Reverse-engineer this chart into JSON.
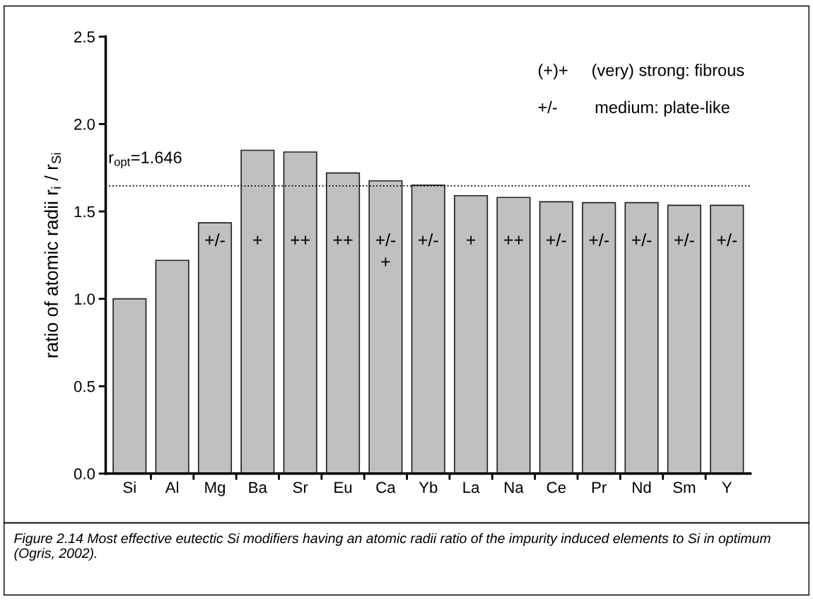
{
  "chart_data": {
    "type": "bar",
    "ylabel": "ratio of atomic radii r$_{i}$ / r$_{Si}$",
    "categories": [
      "Si",
      "Al",
      "Mg",
      "Ba",
      "Sr",
      "Eu",
      "Ca",
      "Yb",
      "La",
      "Na",
      "Ce",
      "Pr",
      "Nd",
      "Sm",
      "Y"
    ],
    "values": [
      1.0,
      1.22,
      1.435,
      1.85,
      1.84,
      1.72,
      1.675,
      1.65,
      1.59,
      1.58,
      1.555,
      1.55,
      1.55,
      1.535,
      1.535
    ],
    "color": "#c0c0c0",
    "ylim": [
      0,
      2.5
    ],
    "yticks": [
      {
        "value": 0,
        "label": "0.0"
      },
      0.5,
      {
        "value": 1,
        "label": "1.0"
      },
      1.5,
      {
        "value": 2,
        "label": "2.0"
      },
      2.5
    ],
    "grid": false,
    "legend": false,
    "ref_lines": [
      {
        "axis": "y",
        "value": 1.646,
        "label": "r$_{opt}$=1.646",
        "line_style": "dotted",
        "color": "#000000"
      }
    ],
    "value_labels": [
      null,
      null,
      "+/-",
      "+",
      "++",
      "++",
      "+/-\n+",
      "+/-",
      "+",
      "++",
      "+/-",
      "+/-",
      "+/-",
      "+/-",
      "+/-"
    ],
    "annotations": [
      "(+)+     (very) strong: fibrous",
      "+/-        medium: plate-like",
      "Figure 2.14 Most effective eutectic Si modifiers having an atomic radii ratio of the impurity induced elements to Si in optimum (Ogris, 2002)."
    ]
  }
}
